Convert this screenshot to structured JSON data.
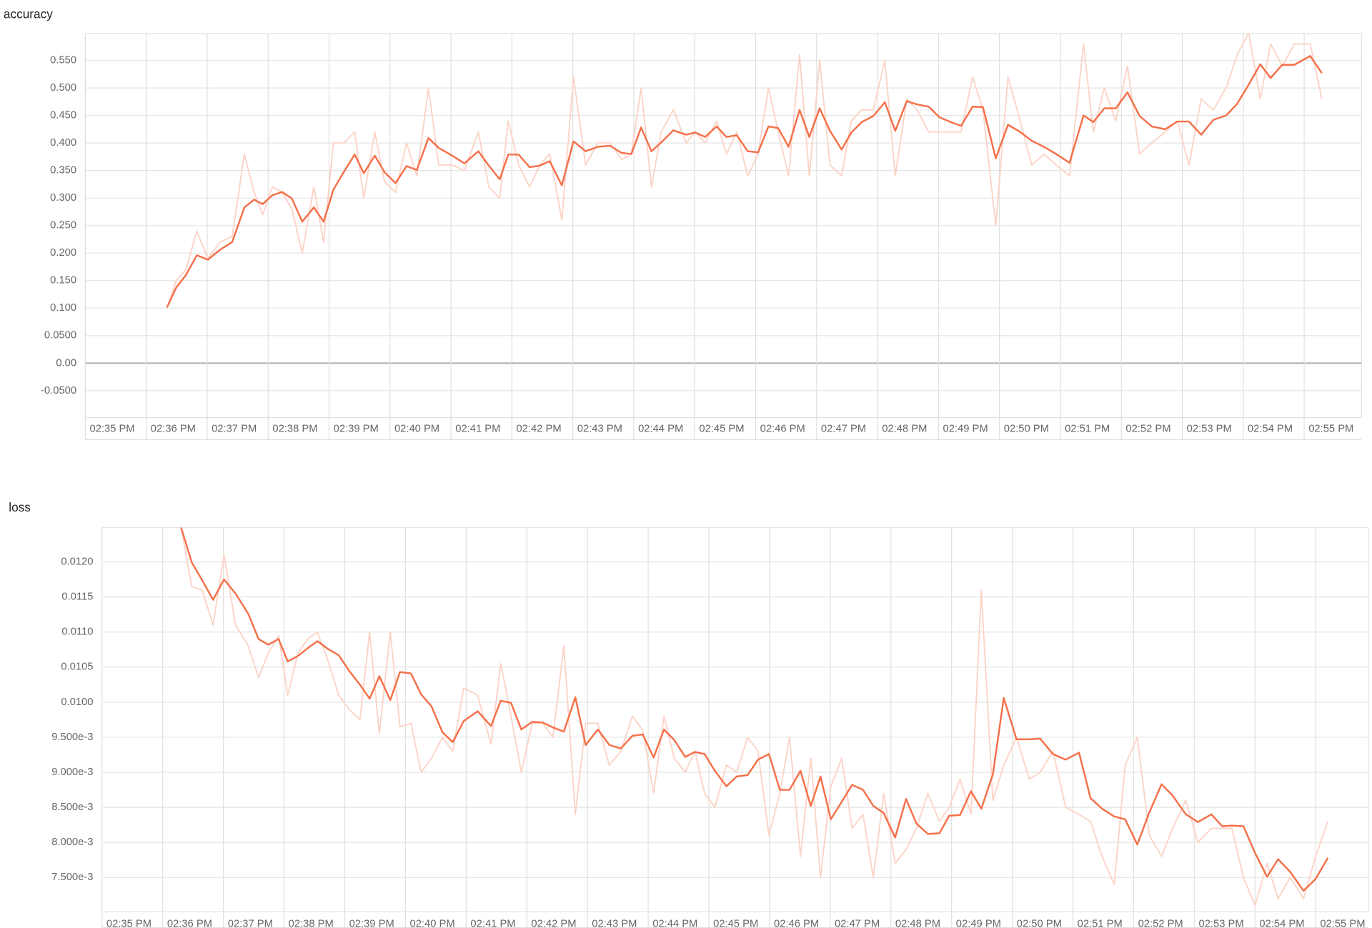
{
  "chart_data": [
    {
      "type": "line",
      "title": "accuracy",
      "xlim": [
        35,
        55.94
      ],
      "ylim": [
        -0.099,
        0.599
      ],
      "xticks": [
        {
          "value": 35,
          "label": "02:35 PM"
        },
        {
          "value": 36,
          "label": "02:36 PM"
        },
        {
          "value": 37,
          "label": "02:37 PM"
        },
        {
          "value": 38,
          "label": "02:38 PM"
        },
        {
          "value": 39,
          "label": "02:39 PM"
        },
        {
          "value": 40,
          "label": "02:40 PM"
        },
        {
          "value": 41,
          "label": "02:41 PM"
        },
        {
          "value": 42,
          "label": "02:42 PM"
        },
        {
          "value": 43,
          "label": "02:43 PM"
        },
        {
          "value": 44,
          "label": "02:44 PM"
        },
        {
          "value": 45,
          "label": "02:45 PM"
        },
        {
          "value": 46,
          "label": "02:46 PM"
        },
        {
          "value": 47,
          "label": "02:47 PM"
        },
        {
          "value": 48,
          "label": "02:48 PM"
        },
        {
          "value": 49,
          "label": "02:49 PM"
        },
        {
          "value": 50,
          "label": "02:50 PM"
        },
        {
          "value": 51,
          "label": "02:51 PM"
        },
        {
          "value": 52,
          "label": "02:52 PM"
        },
        {
          "value": 53,
          "label": "02:53 PM"
        },
        {
          "value": 54,
          "label": "02:54 PM"
        },
        {
          "value": 55,
          "label": "02:55 PM"
        }
      ],
      "yticks": [
        {
          "value": 0.55,
          "label": "0.550"
        },
        {
          "value": 0.5,
          "label": "0.500"
        },
        {
          "value": 0.45,
          "label": "0.450"
        },
        {
          "value": 0.4,
          "label": "0.400"
        },
        {
          "value": 0.35,
          "label": "0.350"
        },
        {
          "value": 0.3,
          "label": "0.300"
        },
        {
          "value": 0.25,
          "label": "0.250"
        },
        {
          "value": 0.2,
          "label": "0.200"
        },
        {
          "value": 0.15,
          "label": "0.150"
        },
        {
          "value": 0.1,
          "label": "0.100"
        },
        {
          "value": 0.05,
          "label": "0.0500"
        },
        {
          "value": 0,
          "label": "0.00"
        },
        {
          "value": -0.05,
          "label": "-0.0500"
        }
      ],
      "grid": true,
      "x": [
        36.34,
        36.49,
        36.65,
        36.83,
        37.01,
        37.21,
        37.41,
        37.61,
        37.77,
        37.91,
        38.07,
        38.23,
        38.39,
        38.56,
        38.75,
        38.91,
        39.07,
        39.24,
        39.42,
        39.57,
        39.75,
        39.91,
        40.09,
        40.27,
        40.44,
        40.63,
        40.8,
        41.02,
        41.22,
        41.45,
        41.62,
        41.8,
        41.94,
        42.11,
        42.29,
        42.46,
        42.62,
        42.82,
        43.01,
        43.21,
        43.41,
        43.61,
        43.8,
        43.96,
        44.12,
        44.29,
        44.45,
        44.65,
        44.86,
        45.01,
        45.17,
        45.36,
        45.52,
        45.69,
        45.87,
        46.04,
        46.21,
        46.37,
        46.54,
        46.72,
        46.88,
        47.05,
        47.22,
        47.41,
        47.57,
        47.74,
        47.93,
        48.12,
        48.29,
        48.48,
        48.65,
        48.84,
        49.01,
        49.2,
        49.37,
        49.56,
        49.73,
        49.94,
        50.14,
        50.34,
        50.53,
        50.73,
        50.93,
        51.15,
        51.38,
        51.54,
        51.72,
        51.91,
        52.1,
        52.3,
        52.5,
        52.72,
        52.92,
        53.11,
        53.31,
        53.51,
        53.72,
        53.9,
        54.09,
        54.28,
        54.45,
        54.64,
        54.84,
        55.1,
        55.29
      ],
      "series": [
        {
          "color": "#fbd3c6",
          "values": [
            0.1,
            0.15,
            0.17,
            0.24,
            0.19,
            0.22,
            0.23,
            0.38,
            0.31,
            0.27,
            0.32,
            0.31,
            0.28,
            0.2,
            0.32,
            0.22,
            0.4,
            0.4,
            0.42,
            0.3,
            0.42,
            0.33,
            0.31,
            0.4,
            0.34,
            0.5,
            0.36,
            0.36,
            0.35,
            0.42,
            0.32,
            0.3,
            0.44,
            0.36,
            0.32,
            0.36,
            0.38,
            0.26,
            0.52,
            0.36,
            0.4,
            0.4,
            0.37,
            0.38,
            0.5,
            0.32,
            0.42,
            0.46,
            0.4,
            0.42,
            0.4,
            0.44,
            0.38,
            0.42,
            0.34,
            0.38,
            0.5,
            0.42,
            0.34,
            0.56,
            0.34,
            0.55,
            0.36,
            0.34,
            0.44,
            0.46,
            0.46,
            0.55,
            0.34,
            0.48,
            0.46,
            0.42,
            0.42,
            0.42,
            0.42,
            0.52,
            0.46,
            0.25,
            0.52,
            0.44,
            0.36,
            0.38,
            0.36,
            0.34,
            0.58,
            0.42,
            0.5,
            0.44,
            0.54,
            0.38,
            0.4,
            0.42,
            0.44,
            0.36,
            0.48,
            0.46,
            0.5,
            0.56,
            0.6,
            0.48,
            0.58,
            0.54,
            0.58,
            0.58,
            0.48
          ]
        },
        {
          "color": "#f4704a",
          "values": [
            0.101,
            0.137,
            0.16,
            0.196,
            0.188,
            0.206,
            0.22,
            0.283,
            0.297,
            0.289,
            0.305,
            0.311,
            0.299,
            0.257,
            0.283,
            0.257,
            0.315,
            0.347,
            0.379,
            0.345,
            0.377,
            0.347,
            0.327,
            0.358,
            0.351,
            0.409,
            0.391,
            0.377,
            0.363,
            0.385,
            0.359,
            0.334,
            0.379,
            0.379,
            0.356,
            0.359,
            0.367,
            0.323,
            0.403,
            0.385,
            0.393,
            0.395,
            0.382,
            0.38,
            0.428,
            0.385,
            0.401,
            0.423,
            0.415,
            0.419,
            0.411,
            0.43,
            0.411,
            0.414,
            0.385,
            0.383,
            0.43,
            0.427,
            0.393,
            0.46,
            0.411,
            0.463,
            0.422,
            0.388,
            0.419,
            0.438,
            0.449,
            0.474,
            0.422,
            0.476,
            0.47,
            0.466,
            0.447,
            0.438,
            0.431,
            0.466,
            0.465,
            0.372,
            0.433,
            0.42,
            0.404,
            0.393,
            0.38,
            0.364,
            0.45,
            0.438,
            0.463,
            0.463,
            0.492,
            0.449,
            0.43,
            0.425,
            0.439,
            0.439,
            0.415,
            0.442,
            0.45,
            0.471,
            0.506,
            0.543,
            0.518,
            0.542,
            0.542,
            0.558,
            0.527
          ]
        }
      ]
    },
    {
      "type": "line",
      "title": "loss",
      "xlim": [
        35,
        55.87
      ],
      "ylim": [
        0.00701,
        0.01249
      ],
      "xticks": [
        {
          "value": 35,
          "label": "02:35 PM"
        },
        {
          "value": 36,
          "label": "02:36 PM"
        },
        {
          "value": 37,
          "label": "02:37 PM"
        },
        {
          "value": 38,
          "label": "02:38 PM"
        },
        {
          "value": 39,
          "label": "02:39 PM"
        },
        {
          "value": 40,
          "label": "02:40 PM"
        },
        {
          "value": 41,
          "label": "02:41 PM"
        },
        {
          "value": 42,
          "label": "02:42 PM"
        },
        {
          "value": 43,
          "label": "02:43 PM"
        },
        {
          "value": 44,
          "label": "02:44 PM"
        },
        {
          "value": 45,
          "label": "02:45 PM"
        },
        {
          "value": 46,
          "label": "02:46 PM"
        },
        {
          "value": 47,
          "label": "02:47 PM"
        },
        {
          "value": 48,
          "label": "02:48 PM"
        },
        {
          "value": 49,
          "label": "02:49 PM"
        },
        {
          "value": 50,
          "label": "02:50 PM"
        },
        {
          "value": 51,
          "label": "02:51 PM"
        },
        {
          "value": 52,
          "label": "02:52 PM"
        },
        {
          "value": 53,
          "label": "02:53 PM"
        },
        {
          "value": 54,
          "label": "02:54 PM"
        },
        {
          "value": 55,
          "label": "02:55 PM"
        }
      ],
      "yticks": [
        {
          "value": 0.012,
          "label": "0.0120"
        },
        {
          "value": 0.0115,
          "label": "0.0115"
        },
        {
          "value": 0.011,
          "label": "0.0110"
        },
        {
          "value": 0.0105,
          "label": "0.0105"
        },
        {
          "value": 0.01,
          "label": "0.0100"
        },
        {
          "value": 0.0095,
          "label": "9.500e-3"
        },
        {
          "value": 0.009,
          "label": "9.000e-3"
        },
        {
          "value": 0.0085,
          "label": "8.500e-3"
        },
        {
          "value": 0.008,
          "label": "8.000e-3"
        },
        {
          "value": 0.0075,
          "label": "7.500e-3"
        }
      ],
      "grid": true,
      "x": [
        36.3,
        36.48,
        36.65,
        36.83,
        37.01,
        37.2,
        37.41,
        37.58,
        37.74,
        37.91,
        38.06,
        38.23,
        38.39,
        38.55,
        38.72,
        38.9,
        39.07,
        39.25,
        39.41,
        39.57,
        39.75,
        39.91,
        40.09,
        40.26,
        40.43,
        40.61,
        40.78,
        40.96,
        41.19,
        41.41,
        41.57,
        41.74,
        41.91,
        42.09,
        42.26,
        42.43,
        42.61,
        42.8,
        42.97,
        43.17,
        43.36,
        43.55,
        43.74,
        43.91,
        44.09,
        44.26,
        44.43,
        44.61,
        44.77,
        44.93,
        45.1,
        45.29,
        45.46,
        45.64,
        45.81,
        45.99,
        46.17,
        46.33,
        46.51,
        46.68,
        46.84,
        47.01,
        47.19,
        47.36,
        47.54,
        47.71,
        47.88,
        48.07,
        48.25,
        48.42,
        48.61,
        48.8,
        48.96,
        49.14,
        49.32,
        49.49,
        49.68,
        49.86,
        50.07,
        50.28,
        50.46,
        50.67,
        50.88,
        51.1,
        51.29,
        51.48,
        51.68,
        51.86,
        52.06,
        52.26,
        52.46,
        52.64,
        52.86,
        53.06,
        53.28,
        53.46,
        53.62,
        53.81,
        54.0,
        54.2,
        54.38,
        54.58,
        54.8,
        55.0,
        55.2
      ],
      "series": [
        {
          "color": "#fbd3c6",
          "values": [
            0.0125,
            0.01165,
            0.0116,
            0.0111,
            0.0121,
            0.0111,
            0.0108,
            0.01035,
            0.0107,
            0.01095,
            0.0101,
            0.0107,
            0.0109,
            0.011,
            0.0106,
            0.0101,
            0.0099,
            0.00975,
            0.011,
            0.00955,
            0.011,
            0.00965,
            0.0097,
            0.009,
            0.0092,
            0.0095,
            0.0093,
            0.0102,
            0.0101,
            0.0094,
            0.01055,
            0.0098,
            0.009,
            0.0097,
            0.0097,
            0.0095,
            0.0108,
            0.0084,
            0.0097,
            0.0097,
            0.0091,
            0.0093,
            0.0098,
            0.0096,
            0.0087,
            0.0098,
            0.0092,
            0.009,
            0.0093,
            0.0087,
            0.0085,
            0.0091,
            0.009,
            0.0095,
            0.0093,
            0.0081,
            0.0087,
            0.0095,
            0.0078,
            0.0092,
            0.0075,
            0.0088,
            0.0092,
            0.0082,
            0.0084,
            0.0075,
            0.0087,
            0.0077,
            0.0079,
            0.0082,
            0.0087,
            0.0083,
            0.0085,
            0.0089,
            0.0084,
            0.0116,
            0.0086,
            0.0091,
            0.0095,
            0.0089,
            0.009,
            0.0093,
            0.0085,
            0.0084,
            0.0083,
            0.0078,
            0.0074,
            0.0091,
            0.0095,
            0.0081,
            0.0078,
            0.0082,
            0.0086,
            0.008,
            0.0082,
            0.0082,
            0.0082,
            0.0075,
            0.0071,
            0.0077,
            0.0072,
            0.0075,
            0.0072,
            0.0078,
            0.0083
          ]
        },
        {
          "color": "#f4704a",
          "values": [
            0.0125,
            0.01199,
            0.01174,
            0.01146,
            0.01175,
            0.01155,
            0.01126,
            0.0109,
            0.01082,
            0.0109,
            0.01058,
            0.01066,
            0.01077,
            0.01087,
            0.01076,
            0.01067,
            0.01045,
            0.01025,
            0.01005,
            0.01037,
            0.01003,
            0.01043,
            0.01041,
            0.01011,
            0.00994,
            0.00957,
            0.00943,
            0.00973,
            0.00987,
            0.00966,
            0.01002,
            0.00999,
            0.00961,
            0.00972,
            0.00971,
            0.00964,
            0.00958,
            0.01007,
            0.00939,
            0.00961,
            0.00939,
            0.00934,
            0.00952,
            0.00954,
            0.00921,
            0.00961,
            0.00946,
            0.00922,
            0.00929,
            0.00926,
            0.00902,
            0.0088,
            0.00894,
            0.00896,
            0.00918,
            0.00926,
            0.00875,
            0.00875,
            0.00902,
            0.00852,
            0.00894,
            0.00833,
            0.00858,
            0.00882,
            0.00875,
            0.00852,
            0.00842,
            0.00807,
            0.00862,
            0.00827,
            0.00812,
            0.00813,
            0.00838,
            0.00839,
            0.00873,
            0.00848,
            0.00897,
            0.01006,
            0.00947,
            0.00947,
            0.00948,
            0.00926,
            0.00918,
            0.00928,
            0.00863,
            0.00848,
            0.00837,
            0.00833,
            0.00797,
            0.00843,
            0.00883,
            0.00867,
            0.0084,
            0.00829,
            0.0084,
            0.00823,
            0.00824,
            0.00823,
            0.00785,
            0.00751,
            0.00776,
            0.00758,
            0.00731,
            0.00748,
            0.00778
          ]
        }
      ]
    }
  ]
}
